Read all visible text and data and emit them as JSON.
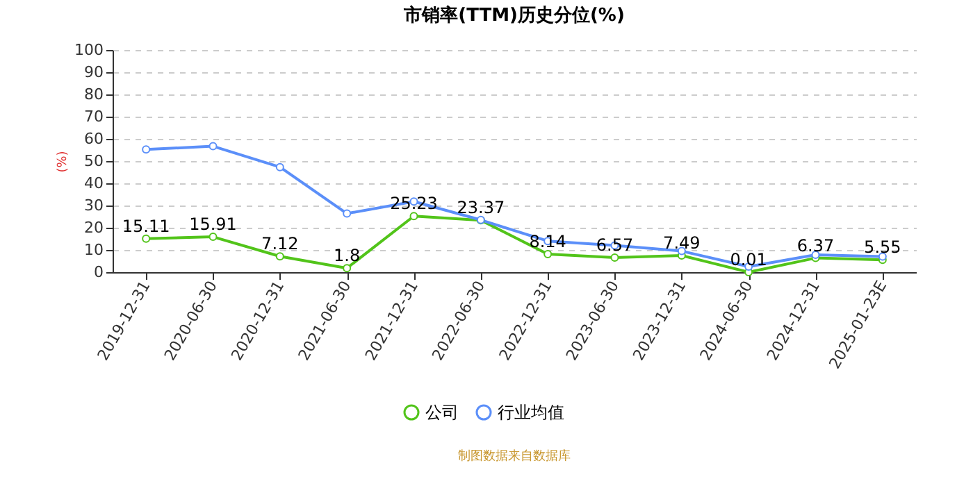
{
  "chart_data": {
    "type": "line",
    "title": "市销率(TTM)历史分位(%)",
    "ylabel": "(%)",
    "categories": [
      "2019-12-31",
      "2020-06-30",
      "2020-12-31",
      "2021-06-30",
      "2021-12-31",
      "2022-06-30",
      "2022-12-31",
      "2023-06-30",
      "2023-12-31",
      "2024-06-30",
      "2024-12-31",
      "2025-01-23E"
    ],
    "series": [
      {
        "name": "公司",
        "color": "#52c41a",
        "values": [
          15.11,
          15.91,
          7.12,
          1.8,
          25.23,
          23.37,
          8.14,
          6.57,
          7.49,
          0.01,
          6.37,
          5.55
        ],
        "value_labels": [
          "15.11",
          "15.91",
          "7.12",
          "1.8",
          "25.23",
          "23.37",
          "8.14",
          "6.57",
          "7.49",
          "0.01",
          "6.37",
          "5.55"
        ]
      },
      {
        "name": "行业均值",
        "color": "#5b8ff9",
        "values": [
          55.2,
          56.7,
          47.3,
          26.4,
          31.8,
          23.5,
          14.0,
          12.0,
          9.5,
          2.5,
          7.8,
          7.0
        ]
      }
    ],
    "ylim": [
      0,
      100
    ],
    "yticks": [
      0,
      10,
      20,
      30,
      40,
      50,
      60,
      70,
      80,
      90,
      100
    ],
    "grid": "y",
    "legend": "bottom",
    "marker": "circle",
    "line_style": "solid",
    "annotations": [
      "制图数据来自数据库"
    ]
  }
}
